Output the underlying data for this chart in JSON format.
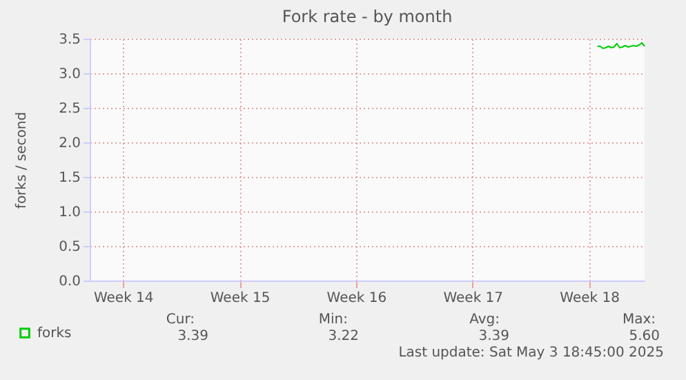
{
  "chart_data": {
    "type": "line",
    "title": "Fork rate - by month",
    "ylabel": "forks / second",
    "categories": [
      null,
      null,
      null,
      null,
      null,
      null,
      null,
      null,
      null,
      null,
      null,
      null,
      "Week 14",
      null,
      null,
      null,
      null,
      null,
      null,
      null,
      null,
      null,
      null,
      null,
      null,
      null,
      null,
      null,
      null,
      null,
      null,
      null,
      null,
      null,
      null,
      null,
      null,
      null,
      null,
      null,
      null,
      null,
      null,
      null,
      null,
      null,
      null,
      null,
      null,
      null,
      null,
      null,
      null,
      null,
      "Week 15",
      null,
      null,
      null,
      null,
      null,
      null,
      null,
      null,
      null,
      null,
      null,
      null,
      null,
      null,
      null,
      null,
      null,
      null,
      null,
      null,
      null,
      null,
      null,
      null,
      null,
      null,
      null,
      null,
      null,
      null,
      null,
      null,
      null,
      null,
      null,
      null,
      null,
      null,
      null,
      null,
      null,
      "Week 16",
      null,
      null,
      null,
      null,
      null,
      null,
      null,
      null,
      null,
      null,
      null,
      null,
      null,
      null,
      null,
      null,
      null,
      null,
      null,
      null,
      null,
      null,
      null,
      null,
      null,
      null,
      null,
      null,
      null,
      null,
      null,
      null,
      null,
      null,
      null,
      null,
      null,
      null,
      null,
      null,
      null,
      "Week 17",
      null,
      null,
      null,
      null,
      null,
      null,
      null,
      null,
      null,
      null,
      null,
      null,
      null,
      null,
      null,
      null,
      null,
      null,
      null,
      null,
      null,
      null,
      null,
      null,
      null,
      null,
      null,
      null,
      null,
      null,
      null,
      null,
      null,
      null,
      null,
      null,
      null,
      null,
      null,
      null,
      null,
      "Week 18",
      null,
      null,
      null,
      null,
      null,
      null,
      null,
      null,
      null,
      null,
      null,
      null,
      null,
      null,
      null,
      null,
      null,
      null,
      null,
      null
    ],
    "ylim": [
      0,
      3.5
    ],
    "yticks": [
      {
        "value": 0,
        "label": "0.0"
      },
      0.5,
      {
        "value": 1,
        "label": "1.0"
      },
      1.5,
      {
        "value": 2,
        "label": "2.0"
      },
      2.5,
      {
        "value": 3,
        "label": "3.0"
      },
      3.5
    ],
    "series": [
      {
        "name": "forks",
        "color": "#00cc00",
        "values": [
          null,
          null,
          null,
          null,
          null,
          null,
          null,
          null,
          null,
          null,
          null,
          null,
          null,
          null,
          null,
          null,
          null,
          null,
          null,
          null,
          null,
          null,
          null,
          null,
          null,
          null,
          null,
          null,
          null,
          null,
          null,
          null,
          null,
          null,
          null,
          null,
          null,
          null,
          null,
          null,
          null,
          null,
          null,
          null,
          null,
          null,
          null,
          null,
          null,
          null,
          null,
          null,
          null,
          null,
          null,
          null,
          null,
          null,
          null,
          null,
          null,
          null,
          null,
          null,
          null,
          null,
          null,
          null,
          null,
          null,
          null,
          null,
          null,
          null,
          null,
          null,
          null,
          null,
          null,
          null,
          null,
          null,
          null,
          null,
          null,
          null,
          null,
          null,
          null,
          null,
          null,
          null,
          null,
          null,
          null,
          null,
          null,
          null,
          null,
          null,
          null,
          null,
          null,
          null,
          null,
          null,
          null,
          null,
          null,
          null,
          null,
          null,
          null,
          null,
          null,
          null,
          null,
          null,
          null,
          null,
          null,
          null,
          null,
          null,
          null,
          null,
          null,
          null,
          null,
          null,
          null,
          null,
          null,
          null,
          null,
          null,
          null,
          null,
          null,
          null,
          null,
          null,
          null,
          null,
          null,
          null,
          null,
          null,
          null,
          null,
          null,
          null,
          null,
          null,
          null,
          null,
          null,
          null,
          null,
          null,
          null,
          null,
          null,
          null,
          null,
          null,
          null,
          null,
          null,
          null,
          null,
          null,
          null,
          null,
          null,
          null,
          null,
          null,
          null,
          null,
          null,
          null,
          null,
          3.39,
          3.39,
          3.36,
          3.37,
          3.39,
          3.37,
          3.38,
          3.43,
          3.37,
          3.38,
          3.4,
          3.38,
          3.39,
          3.4,
          3.39,
          3.41,
          3.44,
          3.39
        ]
      }
    ],
    "legend": "bottom left",
    "grid": true,
    "marker": "none",
    "line_style": "solid",
    "annotations": [
      "Cur:",
      "Min:",
      "Avg:",
      "Max:",
      "3.39",
      "3.22",
      "3.39",
      "5.60",
      "Last update: Sat May  3 18:45:00 2025"
    ]
  }
}
